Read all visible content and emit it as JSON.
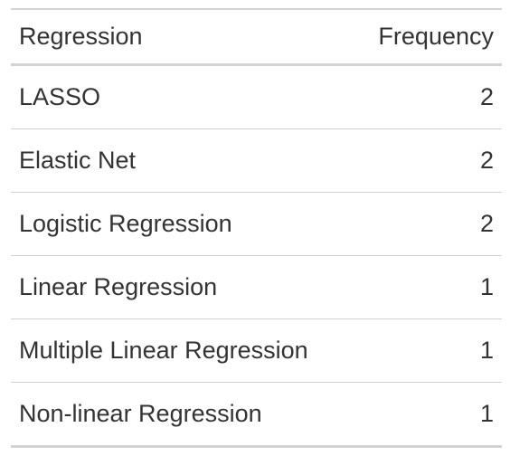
{
  "table": {
    "columns": [
      "Regression",
      "Frequency"
    ],
    "rows": [
      {
        "regression": "LASSO",
        "frequency": "2"
      },
      {
        "regression": "Elastic Net",
        "frequency": "2"
      },
      {
        "regression": "Logistic Regression",
        "frequency": "2"
      },
      {
        "regression": "Linear Regression",
        "frequency": "1"
      },
      {
        "regression": "Multiple Linear Regression",
        "frequency": "1"
      },
      {
        "regression": "Non-linear Regression",
        "frequency": "1"
      }
    ]
  }
}
